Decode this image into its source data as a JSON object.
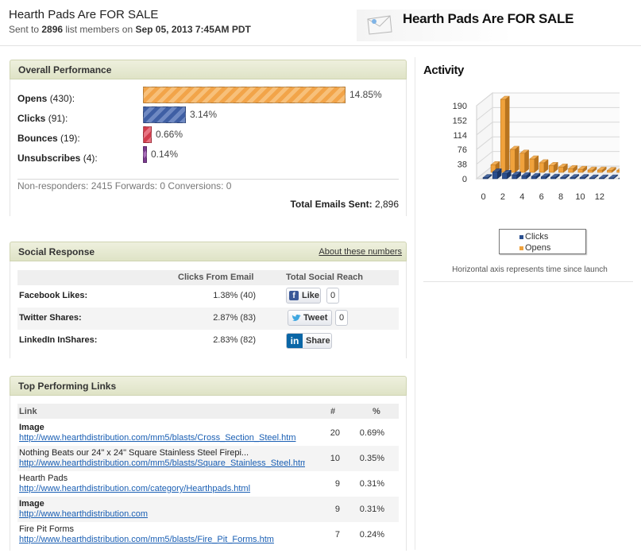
{
  "campaign": {
    "title": "Hearth Pads Are FOR SALE",
    "sent_prefix": "Sent to",
    "recipients": "2896",
    "sent_mid": "list members on",
    "sent_date": "Sep 05, 2013 7:45AM PDT",
    "banner_title": "Hearth Pads Are FOR SALE"
  },
  "overall": {
    "heading": "Overall Performance",
    "rows": [
      {
        "name": "Opens",
        "count": "(430):",
        "pct": "14.85%",
        "fraction": 0.1485
      },
      {
        "name": "Clicks",
        "count": "(91):",
        "pct": "3.14%",
        "fraction": 0.0314
      },
      {
        "name": "Bounces",
        "count": "(19):",
        "pct": "0.66%",
        "fraction": 0.0066
      },
      {
        "name": "Unsubscribes",
        "count": "(4):",
        "pct": "0.14%",
        "fraction": 0.0014
      }
    ],
    "stats_line": "Non-responders: 2415 Forwards: 0 Conversions: 0",
    "total_label": "Total Emails Sent:",
    "total_value": "2,896"
  },
  "social": {
    "heading": "Social Response",
    "about_link": "About these numbers",
    "col_clicks": "Clicks From Email",
    "col_reach": "Total Social Reach",
    "rows": [
      {
        "name": "Facebook Likes:",
        "value": "1.38% (40)",
        "button": "Like",
        "count": "0"
      },
      {
        "name": "Twitter Shares:",
        "value": "2.87% (83)",
        "button": "Tweet",
        "count": "0"
      },
      {
        "name": "LinkedIn InShares:",
        "value": "2.83% (82)",
        "button": "Share",
        "logo": "in"
      }
    ]
  },
  "links": {
    "heading": "Top Performing Links",
    "col_link": "Link",
    "col_count": "#",
    "col_pct": "%",
    "rows": [
      {
        "title": "Image",
        "url": "http://www.hearthdistribution.com/mm5/blasts/Cross_Section_Steel.htm",
        "count": "20",
        "pct": "0.69%"
      },
      {
        "title": "Nothing Beats our 24\" x 24\" Square Stainless Steel Firepi...",
        "url": "http://www.hearthdistribution.com/mm5/blasts/Square_Stainless_Steel.htm",
        "count": "10",
        "pct": "0.35%"
      },
      {
        "title": "Hearth Pads",
        "url": "http://www.hearthdistribution.com/category/Hearthpads.html",
        "count": "9",
        "pct": "0.31%"
      },
      {
        "title": "Image",
        "url": "http://www.hearthdistribution.com",
        "count": "9",
        "pct": "0.31%"
      },
      {
        "title": "Fire Pit Forms",
        "url": "http://www.hearthdistribution.com/mm5/blasts/Fire_Pit_Forms.htm",
        "count": "7",
        "pct": "0.24%"
      }
    ]
  },
  "activity": {
    "heading": "Activity",
    "axis_note": "Horizontal axis represents time since launch",
    "legend": [
      {
        "name": "Clicks",
        "color": "#2b4f8f"
      },
      {
        "name": "Opens",
        "color": "#f0a23c"
      }
    ]
  },
  "chart_data": {
    "type": "bar",
    "x": [
      0,
      1,
      2,
      3,
      4,
      5,
      6,
      7,
      8,
      9,
      10,
      11,
      12,
      13,
      14,
      15
    ],
    "x_ticks": [
      "0",
      "2",
      "4",
      "6",
      "8",
      "10",
      "12"
    ],
    "y_ticks": [
      "0",
      "38",
      "76",
      "114",
      "152",
      "190"
    ],
    "ylim": [
      0,
      190
    ],
    "series": [
      {
        "name": "Clicks",
        "color": "#2b4f8f",
        "values": [
          3,
          18,
          14,
          10,
          8,
          6,
          5,
          4,
          3,
          3,
          3,
          2,
          2,
          2,
          1,
          1
        ]
      },
      {
        "name": "Opens",
        "color": "#f0a23c",
        "values": [
          20,
          190,
          60,
          50,
          35,
          25,
          18,
          14,
          10,
          8,
          6,
          6,
          5,
          5,
          4,
          4
        ]
      }
    ],
    "legend_position": "bottom"
  }
}
